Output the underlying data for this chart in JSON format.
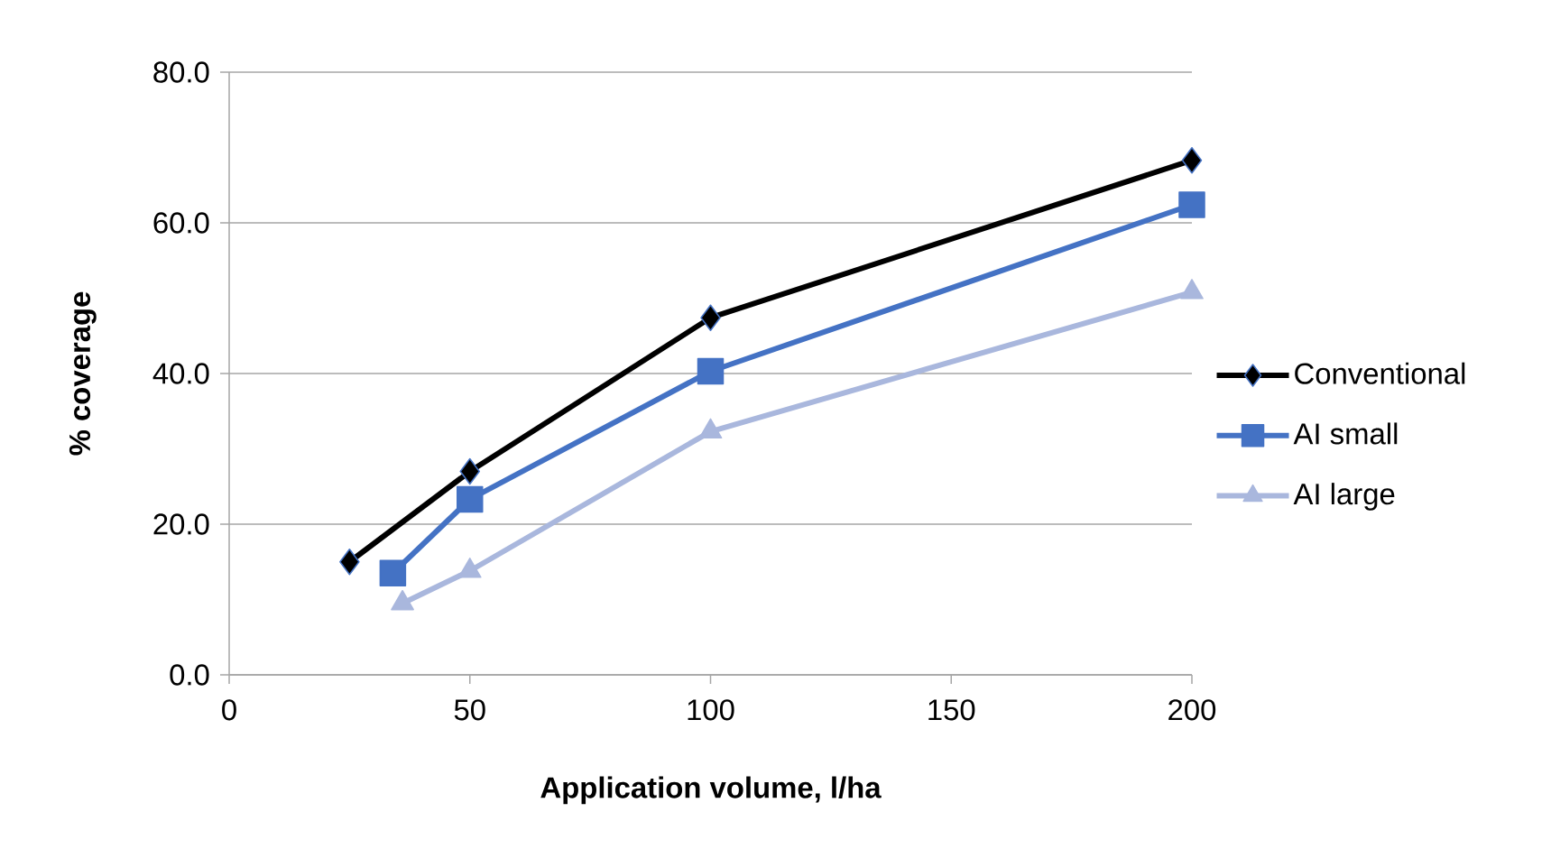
{
  "chart_data": {
    "type": "line",
    "xlabel": "Application volume, l/ha",
    "ylabel": "% coverage",
    "xlim": [
      0,
      200
    ],
    "xticks": [
      0,
      50,
      100,
      150,
      200
    ],
    "ylim": [
      0,
      80
    ],
    "yticks": [
      {
        "value": 0,
        "label": "0.0"
      },
      {
        "value": 20,
        "label": "20.0"
      },
      {
        "value": 40,
        "label": "40.0"
      },
      {
        "value": 60,
        "label": "60.0"
      },
      {
        "value": 80,
        "label": "80.0"
      }
    ],
    "grid": "y",
    "legend": "right",
    "series": [
      {
        "name": "Conventional",
        "color": "#000000",
        "marker": "diamond",
        "x": [
          25,
          50,
          100,
          200
        ],
        "values": [
          15.0,
          27.0,
          47.4,
          68.3
        ]
      },
      {
        "name": "AI small",
        "color": "#4472c4",
        "marker": "square",
        "x": [
          34,
          50,
          100,
          200
        ],
        "values": [
          13.5,
          23.3,
          40.3,
          62.4
        ]
      },
      {
        "name": "AI large",
        "color": "#a9b7dd",
        "marker": "triangle",
        "x": [
          36,
          50,
          100,
          200
        ],
        "values": [
          9.5,
          13.8,
          32.3,
          50.8
        ]
      }
    ]
  }
}
